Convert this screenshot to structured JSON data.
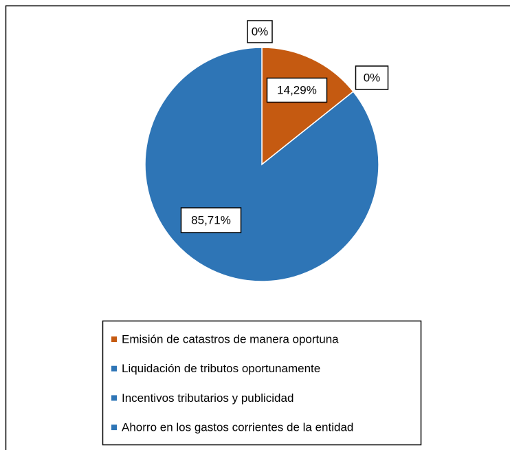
{
  "chart_data": {
    "type": "pie",
    "categories": [
      "Emisión de catastros de manera oportuna",
      "Liquidación de tributos oportunamente",
      "Incentivos tributarios y publicidad",
      "Ahorro en los gastos corrientes de la entidad"
    ],
    "values": [
      14.29,
      0,
      85.71,
      0
    ],
    "value_labels": [
      "14,29%",
      "0%",
      "85,71%",
      "0%"
    ],
    "colors": [
      "#c55a11",
      "#2e75b6",
      "#2e75b6",
      "#2e75b6"
    ]
  }
}
